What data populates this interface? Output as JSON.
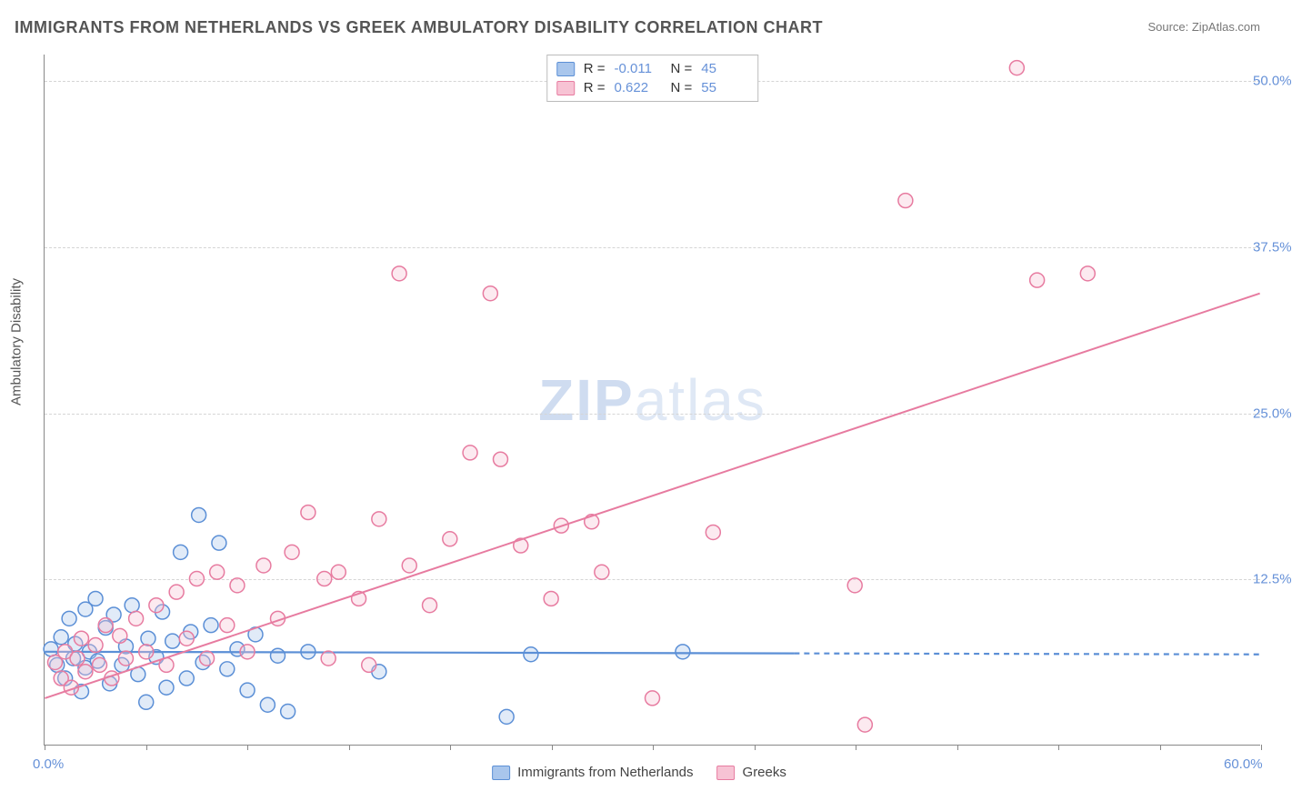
{
  "title": "IMMIGRANTS FROM NETHERLANDS VS GREEK AMBULATORY DISABILITY CORRELATION CHART",
  "source_prefix": "Source: ",
  "source_name": "ZipAtlas.com",
  "y_axis_label": "Ambulatory Disability",
  "watermark_bold": "ZIP",
  "watermark_light": "atlas",
  "chart": {
    "type": "scatter",
    "xlim": [
      0,
      60
    ],
    "ylim": [
      0,
      52
    ],
    "x_ticks_minor": [
      0,
      5,
      10,
      15,
      20,
      25,
      30,
      35,
      40,
      45,
      50,
      55,
      60
    ],
    "ygrid": [
      {
        "value": 12.5,
        "label": "12.5%"
      },
      {
        "value": 25.0,
        "label": "25.0%"
      },
      {
        "value": 37.5,
        "label": "37.5%"
      },
      {
        "value": 50.0,
        "label": "50.0%"
      }
    ],
    "origin_label": "0.0%",
    "xmax_label": "60.0%",
    "background_color": "#ffffff",
    "grid_color": "#d5d5d5",
    "marker_radius": 8,
    "marker_stroke_width": 1.5,
    "marker_fill_opacity": 0.35,
    "series": [
      {
        "id": "netherlands",
        "legend_label": "Immigrants from Netherlands",
        "color_stroke": "#5b8fd6",
        "color_fill": "#a9c6ec",
        "R": "-0.011",
        "N": "45",
        "trend": {
          "x1": 0,
          "y1": 7.0,
          "x2": 60,
          "y2": 6.8,
          "solid_until_x": 37,
          "stroke_width": 2.2
        },
        "points": [
          [
            0.3,
            7.2
          ],
          [
            0.6,
            6.0
          ],
          [
            0.8,
            8.1
          ],
          [
            1.0,
            5.0
          ],
          [
            1.2,
            9.5
          ],
          [
            1.4,
            6.5
          ],
          [
            1.5,
            7.6
          ],
          [
            1.8,
            4.0
          ],
          [
            2.0,
            10.2
          ],
          [
            2.0,
            5.8
          ],
          [
            2.2,
            7.0
          ],
          [
            2.5,
            11.0
          ],
          [
            2.6,
            6.3
          ],
          [
            3.0,
            8.8
          ],
          [
            3.2,
            4.6
          ],
          [
            3.4,
            9.8
          ],
          [
            3.8,
            6.0
          ],
          [
            4.0,
            7.4
          ],
          [
            4.3,
            10.5
          ],
          [
            4.6,
            5.3
          ],
          [
            5.0,
            3.2
          ],
          [
            5.1,
            8.0
          ],
          [
            5.5,
            6.6
          ],
          [
            5.8,
            10.0
          ],
          [
            6.0,
            4.3
          ],
          [
            6.3,
            7.8
          ],
          [
            6.7,
            14.5
          ],
          [
            7.0,
            5.0
          ],
          [
            7.2,
            8.5
          ],
          [
            7.6,
            17.3
          ],
          [
            7.8,
            6.2
          ],
          [
            8.2,
            9.0
          ],
          [
            8.6,
            15.2
          ],
          [
            9.0,
            5.7
          ],
          [
            9.5,
            7.2
          ],
          [
            10.0,
            4.1
          ],
          [
            10.4,
            8.3
          ],
          [
            11.0,
            3.0
          ],
          [
            11.5,
            6.7
          ],
          [
            12.0,
            2.5
          ],
          [
            13.0,
            7.0
          ],
          [
            16.5,
            5.5
          ],
          [
            22.8,
            2.1
          ],
          [
            24.0,
            6.8
          ],
          [
            31.5,
            7.0
          ]
        ]
      },
      {
        "id": "greeks",
        "legend_label": "Greeks",
        "color_stroke": "#e77ba0",
        "color_fill": "#f7c3d4",
        "R": "0.622",
        "N": "55",
        "trend": {
          "x1": 0,
          "y1": 3.5,
          "x2": 60,
          "y2": 34.0,
          "solid_until_x": 60,
          "stroke_width": 2.0
        },
        "points": [
          [
            0.5,
            6.2
          ],
          [
            0.8,
            5.0
          ],
          [
            1.0,
            7.0
          ],
          [
            1.3,
            4.3
          ],
          [
            1.6,
            6.5
          ],
          [
            1.8,
            8.0
          ],
          [
            2.0,
            5.5
          ],
          [
            2.5,
            7.5
          ],
          [
            2.7,
            6.0
          ],
          [
            3.0,
            9.0
          ],
          [
            3.3,
            5.0
          ],
          [
            3.7,
            8.2
          ],
          [
            4.0,
            6.5
          ],
          [
            4.5,
            9.5
          ],
          [
            5.0,
            7.0
          ],
          [
            5.5,
            10.5
          ],
          [
            6.0,
            6.0
          ],
          [
            6.5,
            11.5
          ],
          [
            7.0,
            8.0
          ],
          [
            7.5,
            12.5
          ],
          [
            8.0,
            6.5
          ],
          [
            8.5,
            13.0
          ],
          [
            9.0,
            9.0
          ],
          [
            9.5,
            12.0
          ],
          [
            10.0,
            7.0
          ],
          [
            10.8,
            13.5
          ],
          [
            11.5,
            9.5
          ],
          [
            12.2,
            14.5
          ],
          [
            13.0,
            17.5
          ],
          [
            13.8,
            12.5
          ],
          [
            14.0,
            6.5
          ],
          [
            14.5,
            13.0
          ],
          [
            15.5,
            11.0
          ],
          [
            16.0,
            6.0
          ],
          [
            16.5,
            17.0
          ],
          [
            17.5,
            35.5
          ],
          [
            18.0,
            13.5
          ],
          [
            19.0,
            10.5
          ],
          [
            20.0,
            15.5
          ],
          [
            21.0,
            22.0
          ],
          [
            22.0,
            34.0
          ],
          [
            22.5,
            21.5
          ],
          [
            23.5,
            15.0
          ],
          [
            25.0,
            11.0
          ],
          [
            25.5,
            16.5
          ],
          [
            27.0,
            16.8
          ],
          [
            27.5,
            13.0
          ],
          [
            30.0,
            3.5
          ],
          [
            33.0,
            16.0
          ],
          [
            40.0,
            12.0
          ],
          [
            40.5,
            1.5
          ],
          [
            42.5,
            41.0
          ],
          [
            48.0,
            51.0
          ],
          [
            49.0,
            35.0
          ],
          [
            51.5,
            35.5
          ]
        ]
      }
    ]
  },
  "legend_top": {
    "R_label": "R =",
    "N_label": "N ="
  }
}
